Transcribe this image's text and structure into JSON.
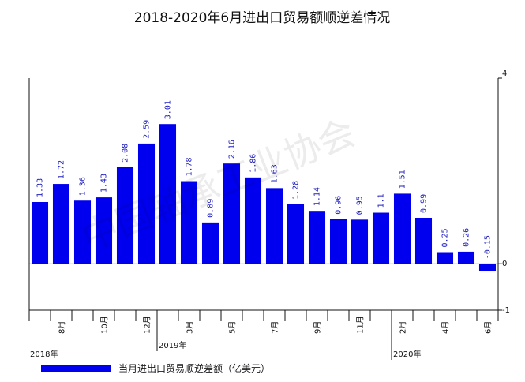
{
  "chart_data": {
    "type": "bar",
    "title": "2018-2020年6月进出口贸易额顺逆差情况",
    "series": [
      {
        "name": "当月进出口贸易顺逆差额（亿美元）",
        "color": "#0000ee",
        "values": [
          1.33,
          1.72,
          1.36,
          1.43,
          2.08,
          2.59,
          3.01,
          1.78,
          0.89,
          2.16,
          1.86,
          1.63,
          1.28,
          1.14,
          0.96,
          0.95,
          1.1,
          1.51,
          0.99,
          0.25,
          0.26,
          -0.15
        ]
      }
    ],
    "data_labels": [
      "1.33",
      "1.72",
      "1.36",
      "1.43",
      "2.08",
      "2.59",
      "3.01",
      "1.78",
      "0.89",
      "2.16",
      "1.86",
      "1.63",
      "1.28",
      "1.14",
      "0.96",
      "0.95",
      "1.1",
      "1.51",
      "0.99",
      "0.25",
      "0.26",
      "-0.15"
    ],
    "categories": [
      "",
      "8月",
      "",
      "10月",
      "",
      "12月",
      "",
      "3月",
      "",
      "5月",
      "",
      "7月",
      "",
      "9月",
      "",
      "11月",
      "",
      "2月",
      "",
      "4月",
      "",
      "6月"
    ],
    "year_labels": [
      {
        "text": "2018年",
        "at_index": 0
      },
      {
        "text": "2019年",
        "at_index": 6
      },
      {
        "text": "2020年",
        "at_index": 17
      }
    ],
    "right_axis": {
      "ticks": [
        "4",
        "0",
        "-1"
      ],
      "tick_values": [
        4,
        0,
        -1
      ]
    },
    "ylim": [
      -1,
      4
    ],
    "legend_position": "bottom-left",
    "grid": false
  },
  "watermark": "中国轴承工业协会"
}
